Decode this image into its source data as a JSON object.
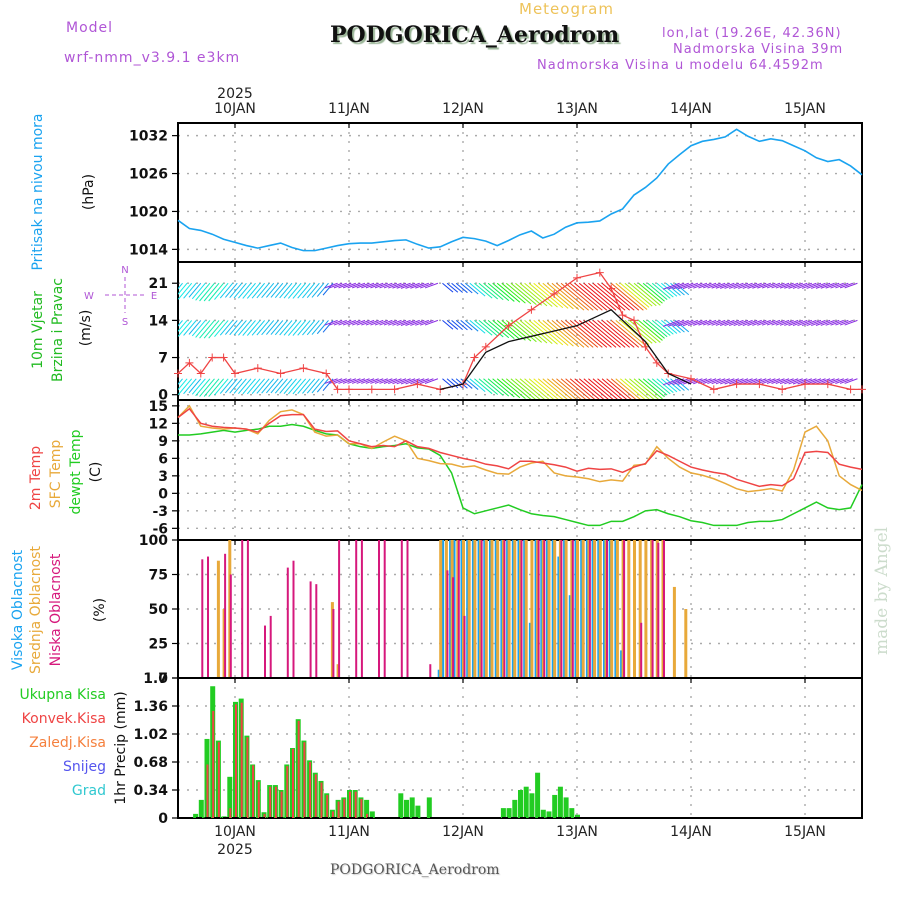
{
  "header": {
    "model_label": "Model",
    "model_name": "wrf-nmm_v3.9.1 e3km",
    "chart_kind": "Meteogram",
    "station": "PODGORICA_Aerodrom",
    "lonlat": "lon,lat (19.26E, 42.36N)",
    "elevation": "Nadmorska Visina 39m",
    "model_elevation": "Nadmorska Visina u modelu 64.4592m",
    "footer_station": "PODGORICA_Aerodrom",
    "watermark": "made by Angel"
  },
  "time_axis": {
    "year": "2025",
    "days": [
      "10JAN",
      "11JAN",
      "12JAN",
      "13JAN",
      "14JAN",
      "15JAN"
    ]
  },
  "chart_data": [
    {
      "type": "line",
      "panel": "pressure",
      "ylabel": "Pritisak na nivou mora",
      "unit": "(hPa)",
      "yticks": [
        1014,
        1020,
        1026,
        1032
      ],
      "ylim": [
        1012,
        1034
      ],
      "grid": true,
      "color": "#1aa3f0",
      "x_days": [
        -0.5,
        -0.4,
        -0.3,
        -0.2,
        -0.1,
        0,
        0.1,
        0.2,
        0.3,
        0.4,
        0.5,
        0.6,
        0.7,
        0.8,
        0.9,
        1,
        1.1,
        1.2,
        1.3,
        1.4,
        1.5,
        1.6,
        1.7,
        1.8,
        1.9,
        2,
        2.1,
        2.2,
        2.3,
        2.4,
        2.5,
        2.6,
        2.7,
        2.8,
        2.9,
        3,
        3.1,
        3.2,
        3.3,
        3.4,
        3.5,
        3.6,
        3.7,
        3.8,
        3.9,
        4,
        4.1,
        4.2,
        4.3,
        4.4,
        4.5,
        4.6,
        4.7,
        4.8,
        4.9,
        5,
        5.1,
        5.2,
        5.3,
        5.4,
        5.5
      ],
      "values": [
        1018.6,
        1017.3,
        1017.0,
        1016.4,
        1015.6,
        1015.1,
        1014.6,
        1014.2,
        1014.6,
        1015.0,
        1014.3,
        1013.8,
        1013.8,
        1014.2,
        1014.6,
        1014.9,
        1015.0,
        1015.0,
        1015.2,
        1015.4,
        1015.5,
        1014.8,
        1014.2,
        1014.4,
        1015.2,
        1015.9,
        1015.7,
        1015.3,
        1014.6,
        1015.4,
        1016.3,
        1016.9,
        1015.8,
        1016.4,
        1017.5,
        1018.2,
        1018.3,
        1018.5,
        1019.6,
        1020.4,
        1022.6,
        1023.8,
        1025.3,
        1027.5,
        1029.0,
        1030.4,
        1031.1,
        1031.4,
        1031.8,
        1033.0,
        1031.9,
        1031.1,
        1031.5,
        1031.2,
        1030.4,
        1029.6,
        1028.5,
        1027.9,
        1028.2,
        1027.2,
        1025.8
      ]
    },
    {
      "type": "line",
      "panel": "wind",
      "ylabel": "10m Vjetar Brzina i Pravac",
      "unit": "(m/s)",
      "compass": {
        "n": "N",
        "s": "S",
        "e": "E",
        "w": "W"
      },
      "yticks": [
        0,
        7,
        14,
        21
      ],
      "ylim": [
        -1,
        25
      ],
      "grid": true,
      "barb_rows": [
        {
          "level_ms": 21,
          "label": "wind barbs upper"
        },
        {
          "level_ms": 14,
          "label": "wind barbs middle"
        },
        {
          "level_ms": 3,
          "label": "wind barbs lower"
        }
      ],
      "series": [
        {
          "name": "wind speed",
          "color": "#ef4444",
          "x_days": [
            -0.5,
            -0.4,
            -0.3,
            -0.2,
            -0.1,
            0,
            0.2,
            0.4,
            0.6,
            0.8,
            0.9,
            1.0,
            1.2,
            1.4,
            1.6,
            1.8,
            2.0,
            2.1,
            2.2,
            2.4,
            2.6,
            2.8,
            3.0,
            3.2,
            3.3,
            3.4,
            3.5,
            3.6,
            3.7,
            3.8,
            4.0,
            4.2,
            4.4,
            4.6,
            4.8,
            5.0,
            5.2,
            5.4,
            5.5
          ],
          "values": [
            4,
            6,
            4,
            7,
            7,
            4,
            5,
            4,
            5,
            4,
            1,
            1,
            1,
            1,
            2,
            1,
            2,
            7,
            9,
            13,
            16,
            19,
            22,
            23,
            20,
            15,
            14,
            9,
            6,
            4,
            3,
            1,
            2,
            2,
            1,
            2,
            2,
            1,
            1
          ]
        },
        {
          "name": "gust/mean (black)",
          "color": "#111111",
          "x_days": [
            1.8,
            2.0,
            2.1,
            2.2,
            2.4,
            2.6,
            2.8,
            3.0,
            3.2,
            3.3,
            3.4,
            3.5,
            3.6,
            3.7,
            3.8,
            4.0
          ],
          "values": [
            1,
            2,
            5,
            8,
            10,
            11,
            12,
            13,
            15,
            16,
            14,
            12,
            10,
            7,
            4,
            2
          ]
        }
      ]
    },
    {
      "type": "line",
      "panel": "temperature",
      "ylabel": "2m Temp / SFC Temp / dewpt Temp",
      "unit": "(C)",
      "yticks": [
        -6,
        -3,
        0,
        3,
        6,
        9,
        12,
        15
      ],
      "ylim": [
        -8,
        16
      ],
      "grid": true,
      "x_days": [
        -0.5,
        -0.4,
        -0.3,
        -0.2,
        -0.1,
        0,
        0.1,
        0.2,
        0.3,
        0.4,
        0.5,
        0.6,
        0.7,
        0.8,
        0.9,
        1,
        1.1,
        1.2,
        1.3,
        1.4,
        1.5,
        1.6,
        1.7,
        1.8,
        1.9,
        2,
        2.1,
        2.2,
        2.3,
        2.4,
        2.5,
        2.6,
        2.7,
        2.8,
        2.9,
        3,
        3.1,
        3.2,
        3.3,
        3.4,
        3.5,
        3.6,
        3.7,
        3.8,
        3.9,
        4,
        4.1,
        4.2,
        4.3,
        4.4,
        4.5,
        4.6,
        4.7,
        4.8,
        4.9,
        5,
        5.1,
        5.2,
        5.3,
        5.4,
        5.5
      ],
      "series": [
        {
          "name": "2m Temp",
          "color": "#ef4444",
          "values": [
            13,
            14.5,
            12,
            11.5,
            11.3,
            11.2,
            11,
            10.5,
            12,
            13.3,
            13.5,
            13.5,
            11,
            10.6,
            10.7,
            9,
            8.5,
            8,
            8.2,
            8,
            9,
            8,
            7.7,
            7,
            6.5,
            6,
            5.6,
            5,
            4.7,
            4.2,
            5.5,
            5.5,
            5.2,
            4.9,
            4.5,
            3.8,
            4.3,
            4.1,
            4.2,
            3.6,
            4.5,
            5.1,
            7.3,
            6.5,
            5.5,
            4.5,
            4.0,
            3.6,
            3.3,
            2.4,
            1.8,
            1.2,
            1.5,
            1.3,
            2.5,
            7,
            7.2,
            7,
            5,
            4.5,
            4.1
          ]
        },
        {
          "name": "SFC Temp",
          "color": "#e8a93a",
          "values": [
            13,
            15,
            11.5,
            11.2,
            11,
            11.2,
            11,
            10.2,
            12.5,
            14,
            14.3,
            13.5,
            10.5,
            9.8,
            10,
            8.5,
            8.5,
            7.7,
            8.8,
            9.8,
            9,
            6,
            5.6,
            5.1,
            5.0,
            4.5,
            4.7,
            4.0,
            3.4,
            3.3,
            4.5,
            5.2,
            5.5,
            3.5,
            3.0,
            2.8,
            2.5,
            2.0,
            2.3,
            2.1,
            4.8,
            5,
            8.0,
            6,
            4.5,
            3.5,
            3.1,
            2.5,
            1.7,
            0.8,
            0.3,
            0.5,
            0.8,
            0.4,
            4,
            10.5,
            11.5,
            9,
            3,
            1.5,
            0.5
          ]
        },
        {
          "name": "dewpt Temp",
          "color": "#22cc22",
          "values": [
            10,
            10,
            10.2,
            10.5,
            10.8,
            10.5,
            10.8,
            11,
            11.5,
            11.5,
            11.8,
            11.5,
            10.8,
            10.2,
            10,
            8.5,
            8,
            7.7,
            8,
            8.2,
            8.5,
            7.8,
            7.6,
            6.5,
            3.5,
            -2.5,
            -3.5,
            -3,
            -2.5,
            -2,
            -2.8,
            -3.5,
            -3.8,
            -4,
            -4.5,
            -5,
            -5.5,
            -5.5,
            -4.8,
            -4.8,
            -4,
            -3,
            -2.8,
            -3.5,
            -4,
            -4.7,
            -5,
            -5.5,
            -5.5,
            -5.5,
            -5,
            -4.8,
            -4.8,
            -4.5,
            -3.5,
            -2.5,
            -1.5,
            -2.5,
            -2.8,
            -2.5,
            1.5
          ]
        }
      ]
    },
    {
      "type": "bar",
      "panel": "cloud cover",
      "ylabel": "Visoka / Srednja / Niska Oblacnost",
      "unit": "(%)",
      "yticks": [
        0,
        25,
        50,
        75,
        100
      ],
      "ylim": [
        0,
        100
      ],
      "grid": true,
      "series": [
        {
          "name": "Visoka Oblacnost",
          "color": "#1aa3f0",
          "x_days": [
            1.8,
            1.83,
            1.9,
            1.93,
            2.0,
            2.05,
            2.1,
            2.15,
            2.2,
            2.25,
            2.3,
            2.35,
            2.4,
            2.45,
            2.5,
            2.55,
            2.6,
            2.65,
            2.7,
            2.75,
            2.8,
            2.85,
            2.9,
            2.95,
            3.0,
            3.05,
            3.1,
            3.15,
            3.2,
            3.25,
            3.3,
            3.35,
            3.4
          ],
          "values": [
            6,
            100,
            100,
            100,
            100,
            100,
            100,
            100,
            100,
            100,
            100,
            100,
            100,
            100,
            100,
            100,
            40,
            100,
            100,
            100,
            100,
            88,
            100,
            60,
            100,
            100,
            100,
            100,
            100,
            100,
            100,
            100,
            20
          ]
        },
        {
          "name": "Srednja Oblacnost",
          "color": "#e8a93a",
          "x_days": [
            -0.15,
            -0.1,
            -0.05,
            0.85,
            0.9,
            1.8,
            1.85,
            1.9,
            1.95,
            2.0,
            2.05,
            2.1,
            2.15,
            2.2,
            2.25,
            2.3,
            2.35,
            2.4,
            2.45,
            2.5,
            2.55,
            2.6,
            2.65,
            2.7,
            2.75,
            2.8,
            2.85,
            2.9,
            2.95,
            3.0,
            3.05,
            3.1,
            3.15,
            3.2,
            3.25,
            3.3,
            3.35,
            3.4,
            3.45,
            3.5,
            3.55,
            3.6,
            3.65,
            3.7,
            3.75,
            3.85,
            3.95
          ],
          "values": [
            85,
            50,
            100,
            55,
            10,
            100,
            100,
            100,
            100,
            100,
            100,
            100,
            100,
            100,
            100,
            100,
            100,
            100,
            100,
            100,
            100,
            100,
            100,
            100,
            100,
            100,
            100,
            100,
            100,
            100,
            100,
            100,
            100,
            100,
            100,
            100,
            100,
            100,
            100,
            100,
            100,
            100,
            100,
            100,
            100,
            66,
            50
          ]
        },
        {
          "name": "Niska Oblacnost",
          "color": "#d6187c",
          "x_days": [
            -0.3,
            -0.25,
            -0.1,
            -0.05,
            0.05,
            0.1,
            0.25,
            0.3,
            0.45,
            0.5,
            0.65,
            0.7,
            0.85,
            0.9,
            1.05,
            1.1,
            1.25,
            1.3,
            1.45,
            1.5,
            1.7,
            1.85,
            1.9,
            1.95,
            2.0,
            2.15,
            2.35,
            2.5,
            2.65,
            2.7,
            2.85,
            2.95,
            3.1,
            3.25,
            3.4,
            3.55,
            3.65,
            3.7,
            3.75
          ],
          "values": [
            86,
            88,
            90,
            75,
            100,
            100,
            38,
            45,
            80,
            85,
            70,
            68,
            50,
            100,
            100,
            100,
            100,
            100,
            100,
            100,
            10,
            78,
            73,
            100,
            45,
            100,
            100,
            100,
            100,
            100,
            100,
            100,
            100,
            100,
            100,
            40,
            100,
            98,
            100
          ]
        }
      ]
    },
    {
      "type": "bar",
      "panel": "precipitation",
      "ylabel": "1hr Precip",
      "unit": "(mm)",
      "yticks": [
        0,
        0.34,
        0.68,
        1.02,
        1.36,
        1.7
      ],
      "ylim": [
        0,
        1.7
      ],
      "grid": true,
      "legend": [
        {
          "name": "Ukupna Kisa",
          "color": "#22cc22"
        },
        {
          "name": "Konvek.Kisa",
          "color": "#ef4444"
        },
        {
          "name": "Zaledj.Kisa",
          "color": "#f5803e"
        },
        {
          "name": "Snijeg",
          "color": "#5555ee"
        },
        {
          "name": "Grad",
          "color": "#30c8d0"
        }
      ],
      "legend_placement": "left",
      "x_days": [
        -0.35,
        -0.3,
        -0.25,
        -0.2,
        -0.15,
        -0.1,
        -0.05,
        0,
        0.05,
        0.1,
        0.15,
        0.2,
        0.25,
        0.3,
        0.35,
        0.4,
        0.45,
        0.5,
        0.55,
        0.6,
        0.65,
        0.7,
        0.75,
        0.8,
        0.85,
        0.9,
        0.95,
        1.0,
        1.05,
        1.1,
        1.15,
        1.2,
        1.45,
        1.5,
        1.55,
        1.6,
        1.7,
        2.35,
        2.4,
        2.45,
        2.5,
        2.55,
        2.6,
        2.65,
        2.7,
        2.75,
        2.8,
        2.85,
        2.9,
        2.95,
        3.0
      ],
      "series": [
        {
          "name": "Ukupna Kisa",
          "values": [
            0.05,
            0.22,
            0.96,
            1.6,
            0.94,
            0.02,
            0.5,
            1.41,
            1.45,
            1.0,
            0.65,
            0.46,
            0.07,
            0.4,
            0.4,
            0.34,
            0.65,
            0.85,
            1.2,
            0.94,
            0.7,
            0.55,
            0.45,
            0.3,
            0.1,
            0.22,
            0.25,
            0.34,
            0.34,
            0.25,
            0.22,
            0.08,
            0.3,
            0.22,
            0.25,
            0.15,
            0.25,
            0.12,
            0.12,
            0.22,
            0.34,
            0.38,
            0.3,
            0.55,
            0.1,
            0.08,
            0.28,
            0.38,
            0.25,
            0.12,
            0.04
          ]
        },
        {
          "name": "Konvek.Kisa",
          "values": [
            0,
            0,
            0.65,
            1.3,
            0.92,
            0,
            0.12,
            1.38,
            1.4,
            0.98,
            0.64,
            0.44,
            0.05,
            0.38,
            0.38,
            0.32,
            0.63,
            0.84,
            1.18,
            0.92,
            0.68,
            0.53,
            0.43,
            0.28,
            0.08,
            0.2,
            0.23,
            0.32,
            0.32,
            0.23,
            0.05,
            0,
            0,
            0,
            0,
            0,
            0,
            0,
            0,
            0,
            0,
            0,
            0,
            0,
            0,
            0,
            0,
            0,
            0,
            0,
            0
          ]
        }
      ]
    }
  ]
}
